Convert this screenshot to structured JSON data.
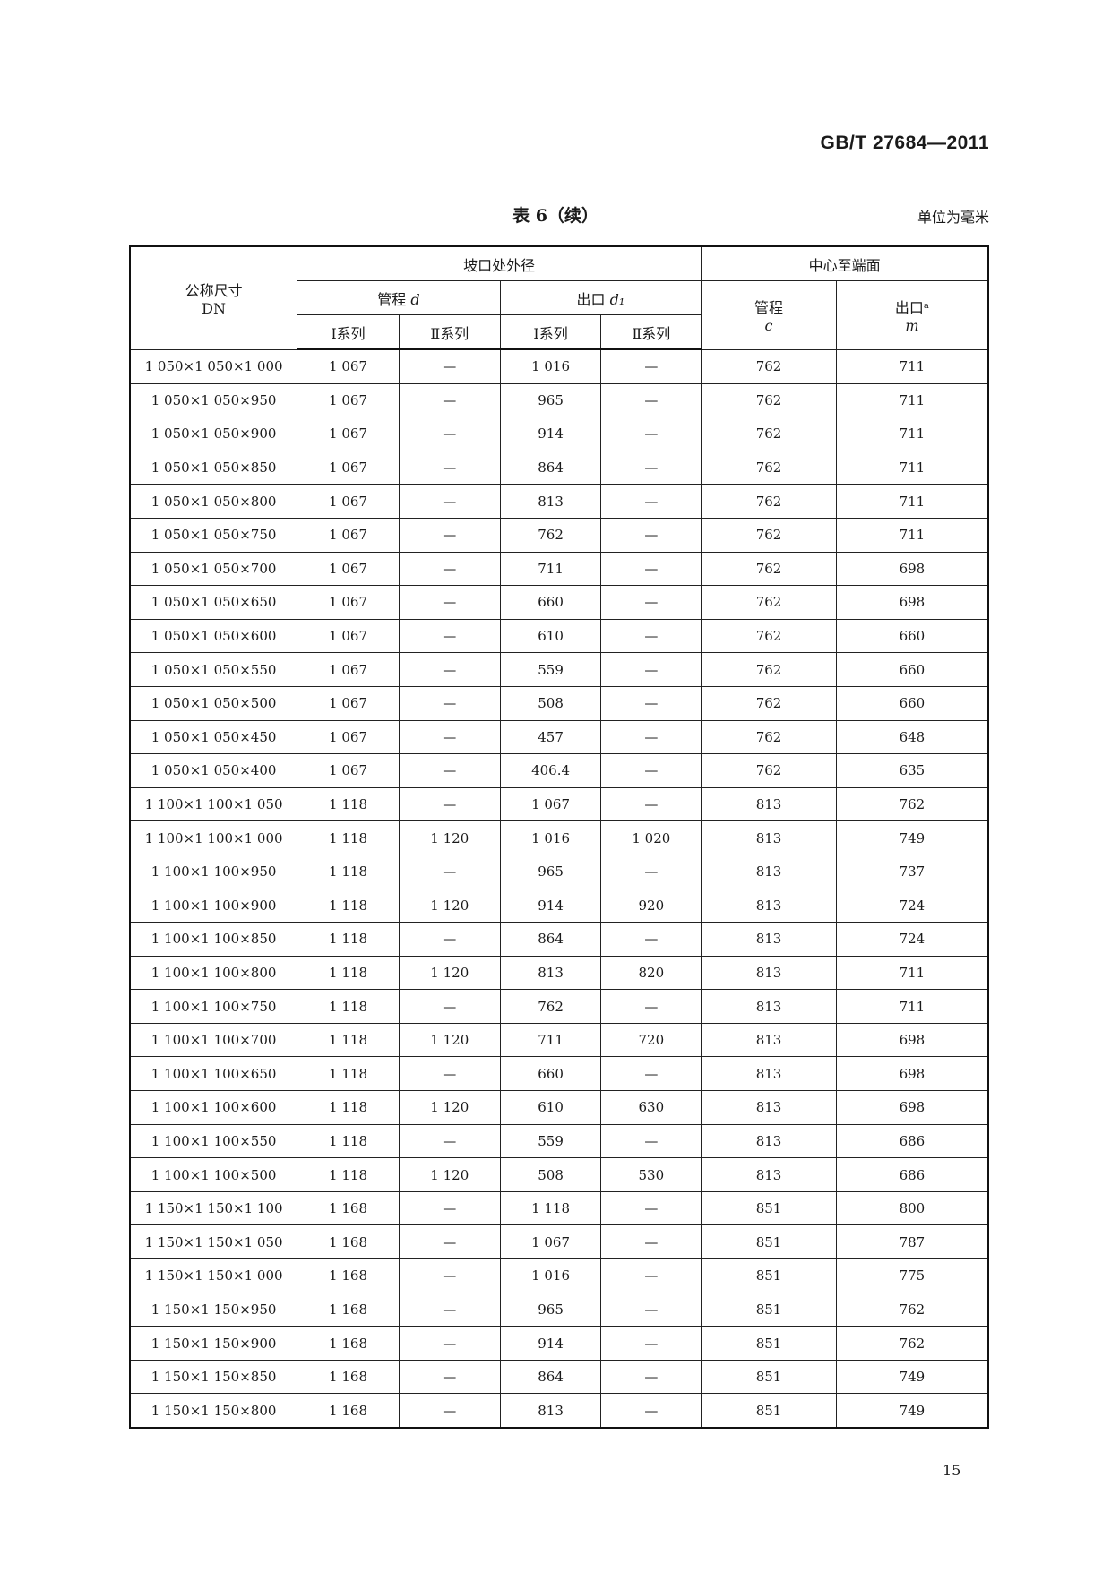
{
  "header": {
    "standard": "GB/T 27684—2011"
  },
  "title": "表 6（续）",
  "unit": "单位为毫米",
  "table": {
    "col_dn": "公称尺寸",
    "col_dn_sub": "DN",
    "group_od": "坡口处外径",
    "group_center": "中心至端面",
    "sub_run": "管程",
    "sub_run_sym": "d",
    "sub_outlet": "出口",
    "sub_outlet_sym": "d₁",
    "center_run": "管程",
    "center_run_sym": "c",
    "center_outlet": "出口ᵃ",
    "center_outlet_sym": "m",
    "series1": "Ⅰ系列",
    "series2": "Ⅱ系列",
    "rows": [
      [
        "1 050×1 050×1 000",
        "1 067",
        "—",
        "1 016",
        "—",
        "762",
        "711"
      ],
      [
        "1 050×1 050×950",
        "1 067",
        "—",
        "965",
        "—",
        "762",
        "711"
      ],
      [
        "1 050×1 050×900",
        "1 067",
        "—",
        "914",
        "—",
        "762",
        "711"
      ],
      [
        "1 050×1 050×850",
        "1 067",
        "—",
        "864",
        "—",
        "762",
        "711"
      ],
      [
        "1 050×1 050×800",
        "1 067",
        "—",
        "813",
        "—",
        "762",
        "711"
      ],
      [
        "1 050×1 050×750",
        "1 067",
        "—",
        "762",
        "—",
        "762",
        "711"
      ],
      [
        "1 050×1 050×700",
        "1 067",
        "—",
        "711",
        "—",
        "762",
        "698"
      ],
      [
        "1 050×1 050×650",
        "1 067",
        "—",
        "660",
        "—",
        "762",
        "698"
      ],
      [
        "1 050×1 050×600",
        "1 067",
        "—",
        "610",
        "—",
        "762",
        "660"
      ],
      [
        "1 050×1 050×550",
        "1 067",
        "—",
        "559",
        "—",
        "762",
        "660"
      ],
      [
        "1 050×1 050×500",
        "1 067",
        "—",
        "508",
        "—",
        "762",
        "660"
      ],
      [
        "1 050×1 050×450",
        "1 067",
        "—",
        "457",
        "—",
        "762",
        "648"
      ],
      [
        "1 050×1 050×400",
        "1 067",
        "—",
        "406.4",
        "—",
        "762",
        "635"
      ],
      [
        "1 100×1 100×1 050",
        "1 118",
        "—",
        "1 067",
        "—",
        "813",
        "762"
      ],
      [
        "1 100×1 100×1 000",
        "1 118",
        "1 120",
        "1 016",
        "1 020",
        "813",
        "749"
      ],
      [
        "1 100×1 100×950",
        "1 118",
        "—",
        "965",
        "—",
        "813",
        "737"
      ],
      [
        "1 100×1 100×900",
        "1 118",
        "1 120",
        "914",
        "920",
        "813",
        "724"
      ],
      [
        "1 100×1 100×850",
        "1 118",
        "—",
        "864",
        "—",
        "813",
        "724"
      ],
      [
        "1 100×1 100×800",
        "1 118",
        "1 120",
        "813",
        "820",
        "813",
        "711"
      ],
      [
        "1 100×1 100×750",
        "1 118",
        "—",
        "762",
        "—",
        "813",
        "711"
      ],
      [
        "1 100×1 100×700",
        "1 118",
        "1 120",
        "711",
        "720",
        "813",
        "698"
      ],
      [
        "1 100×1 100×650",
        "1 118",
        "—",
        "660",
        "—",
        "813",
        "698"
      ],
      [
        "1 100×1 100×600",
        "1 118",
        "1 120",
        "610",
        "630",
        "813",
        "698"
      ],
      [
        "1 100×1 100×550",
        "1 118",
        "—",
        "559",
        "—",
        "813",
        "686"
      ],
      [
        "1 100×1 100×500",
        "1 118",
        "1 120",
        "508",
        "530",
        "813",
        "686"
      ],
      [
        "1 150×1 150×1 100",
        "1 168",
        "—",
        "1 118",
        "—",
        "851",
        "800"
      ],
      [
        "1 150×1 150×1 050",
        "1 168",
        "—",
        "1 067",
        "—",
        "851",
        "787"
      ],
      [
        "1 150×1 150×1 000",
        "1 168",
        "—",
        "1 016",
        "—",
        "851",
        "775"
      ],
      [
        "1 150×1 150×950",
        "1 168",
        "—",
        "965",
        "—",
        "851",
        "762"
      ],
      [
        "1 150×1 150×900",
        "1 168",
        "—",
        "914",
        "—",
        "851",
        "762"
      ],
      [
        "1 150×1 150×850",
        "1 168",
        "—",
        "864",
        "—",
        "851",
        "749"
      ],
      [
        "1 150×1 150×800",
        "1 168",
        "—",
        "813",
        "—",
        "851",
        "749"
      ]
    ]
  },
  "page_number": "15"
}
